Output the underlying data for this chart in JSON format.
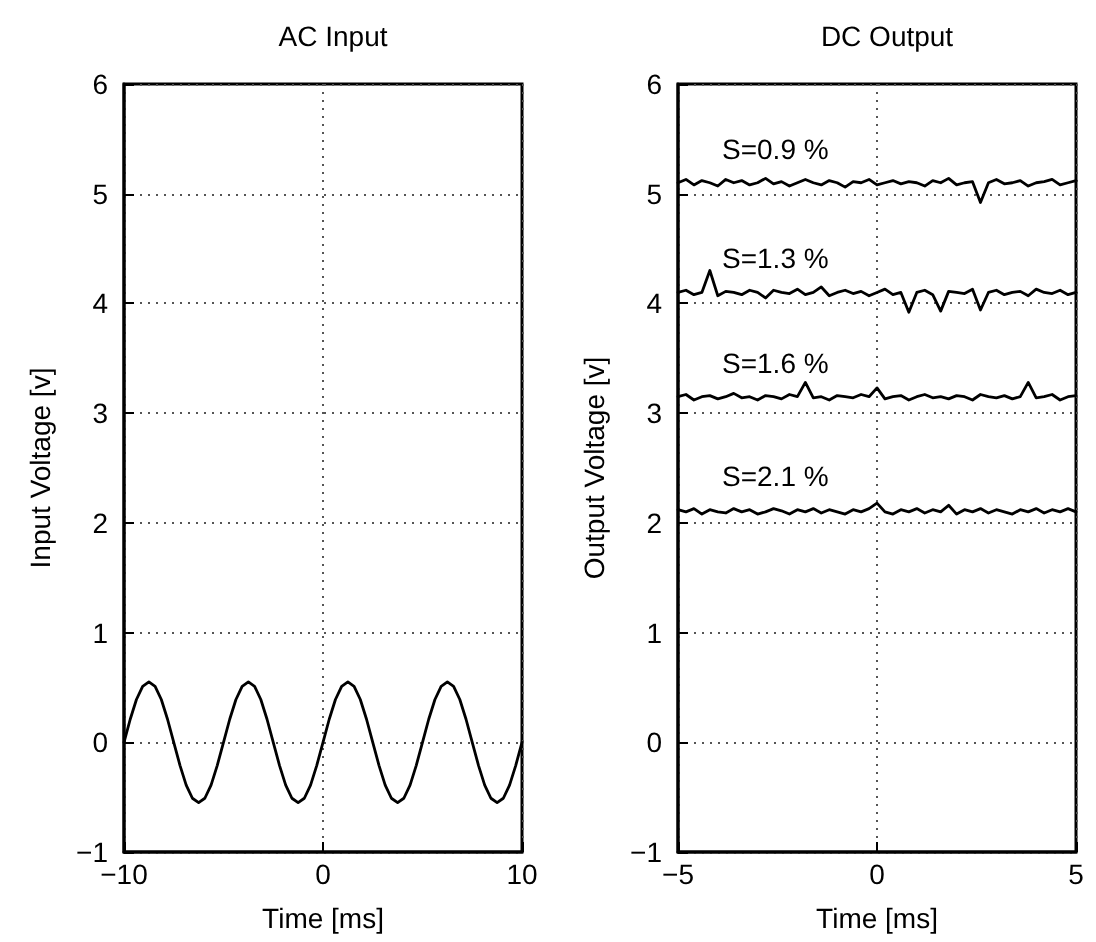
{
  "chart_data": [
    {
      "type": "line",
      "title": "AC Input",
      "xlabel": "Time [ms]",
      "ylabel": "Input Voltage [v]",
      "xlim": [
        -10,
        10
      ],
      "xticks": [
        -10,
        0,
        10
      ],
      "ylim": [
        -1,
        6
      ],
      "yticks": [
        -1,
        0,
        1,
        2,
        3,
        4,
        5,
        6
      ],
      "grid": true,
      "marker": "none",
      "line_style": "solid",
      "x": [
        -10,
        -9.6875,
        -9.375,
        -9.0625,
        -8.75,
        -8.4375,
        -8.125,
        -7.8125,
        -7.5,
        -7.1875,
        -6.875,
        -6.5625,
        -6.25,
        -5.9375,
        -5.625,
        -5.3125,
        -5,
        -4.6875,
        -4.375,
        -4.0625,
        -3.75,
        -3.4375,
        -3.125,
        -2.8125,
        -2.5,
        -2.1875,
        -1.875,
        -1.5625,
        -1.25,
        -0.9375,
        -0.625,
        -0.3125,
        0,
        0.3125,
        0.625,
        0.9375,
        1.25,
        1.5625,
        1.875,
        2.1875,
        2.5,
        2.8125,
        3.125,
        3.4375,
        3.75,
        4.0625,
        4.375,
        4.6875,
        5,
        5.3125,
        5.625,
        5.9375,
        6.25,
        6.5625,
        6.875,
        7.1875,
        7.5,
        7.8125,
        8.125,
        8.4375,
        8.75,
        9.0625,
        9.375,
        9.6875,
        10
      ],
      "series": [
        {
          "color": "#000000",
          "values": [
            0,
            0.21,
            0.39,
            0.51,
            0.55,
            0.51,
            0.39,
            0.21,
            0,
            -0.21,
            -0.39,
            -0.51,
            -0.55,
            -0.51,
            -0.39,
            -0.21,
            0,
            0.21,
            0.39,
            0.51,
            0.55,
            0.51,
            0.39,
            0.21,
            0,
            -0.21,
            -0.39,
            -0.51,
            -0.55,
            -0.51,
            -0.39,
            -0.21,
            0,
            0.21,
            0.39,
            0.51,
            0.55,
            0.51,
            0.39,
            0.21,
            0,
            -0.21,
            -0.39,
            -0.51,
            -0.55,
            -0.51,
            -0.39,
            -0.21,
            0,
            0.21,
            0.39,
            0.51,
            0.55,
            0.51,
            0.39,
            0.21,
            0,
            -0.21,
            -0.39,
            -0.51,
            -0.55,
            -0.51,
            -0.39,
            -0.21,
            0
          ]
        }
      ]
    },
    {
      "type": "line",
      "title": "DC Output",
      "xlabel": "Time [ms]",
      "ylabel": "Output Voltage [v]",
      "xlim": [
        -5,
        5
      ],
      "xticks": [
        -5,
        0,
        5
      ],
      "ylim": [
        -1,
        6
      ],
      "yticks": [
        -1,
        0,
        1,
        2,
        3,
        4,
        5,
        6
      ],
      "grid": true,
      "marker": "none",
      "line_style": "solid",
      "annotations": [
        "S=0.9 %",
        "S=1.3 %",
        "S=1.6 %",
        "S=2.1 %"
      ],
      "x": [
        -5,
        -4.8,
        -4.6,
        -4.4,
        -4.2,
        -4,
        -3.8,
        -3.6,
        -3.4,
        -3.2,
        -3,
        -2.8,
        -2.6,
        -2.4,
        -2.2,
        -2,
        -1.8,
        -1.6,
        -1.4,
        -1.2,
        -1,
        -0.8,
        -0.6,
        -0.4,
        -0.2,
        0,
        0.2,
        0.4,
        0.6,
        0.8,
        1,
        1.2,
        1.4,
        1.6,
        1.8,
        2,
        2.2,
        2.4,
        2.6,
        2.8,
        3,
        3.2,
        3.4,
        3.6,
        3.8,
        4,
        4.2,
        4.4,
        4.6,
        4.8,
        5
      ],
      "series": [
        {
          "color": "#000000",
          "values": [
            5.1,
            5.13,
            5.08,
            5.12,
            5.1,
            5.07,
            5.13,
            5.1,
            5.12,
            5.08,
            5.1,
            5.14,
            5.09,
            5.11,
            5.07,
            5.1,
            5.13,
            5.1,
            5.08,
            5.12,
            5.1,
            5.06,
            5.11,
            5.1,
            5.13,
            5.08,
            5.1,
            5.12,
            5.09,
            5.11,
            5.1,
            5.07,
            5.12,
            5.1,
            5.14,
            5.08,
            5.1,
            5.11,
            4.92,
            5.1,
            5.13,
            5.09,
            5.1,
            5.12,
            5.07,
            5.1,
            5.11,
            5.13,
            5.08,
            5.1,
            5.12
          ]
        },
        {
          "color": "#000000",
          "values": [
            4.1,
            4.12,
            4.08,
            4.1,
            4.3,
            4.07,
            4.11,
            4.1,
            4.08,
            4.12,
            4.1,
            4.05,
            4.12,
            4.1,
            4.09,
            4.13,
            4.08,
            4.1,
            4.15,
            4.07,
            4.1,
            4.12,
            4.09,
            4.11,
            4.07,
            4.1,
            4.13,
            4.08,
            4.1,
            3.92,
            4.1,
            4.12,
            4.08,
            3.93,
            4.11,
            4.1,
            4.09,
            4.13,
            3.94,
            4.1,
            4.12,
            4.08,
            4.1,
            4.11,
            4.07,
            4.13,
            4.1,
            4.09,
            4.12,
            4.08,
            4.1
          ]
        },
        {
          "color": "#000000",
          "values": [
            3.15,
            3.17,
            3.12,
            3.15,
            3.16,
            3.13,
            3.15,
            3.18,
            3.14,
            3.15,
            3.12,
            3.16,
            3.15,
            3.13,
            3.17,
            3.15,
            3.28,
            3.14,
            3.15,
            3.12,
            3.16,
            3.15,
            3.14,
            3.17,
            3.15,
            3.23,
            3.13,
            3.15,
            3.16,
            3.12,
            3.15,
            3.17,
            3.14,
            3.15,
            3.13,
            3.16,
            3.15,
            3.12,
            3.17,
            3.15,
            3.14,
            3.16,
            3.13,
            3.15,
            3.28,
            3.14,
            3.15,
            3.17,
            3.12,
            3.15,
            3.16
          ]
        },
        {
          "color": "#000000",
          "values": [
            2.12,
            2.1,
            2.13,
            2.08,
            2.12,
            2.1,
            2.09,
            2.13,
            2.1,
            2.12,
            2.08,
            2.1,
            2.13,
            2.11,
            2.08,
            2.12,
            2.1,
            2.13,
            2.09,
            2.12,
            2.1,
            2.08,
            2.12,
            2.1,
            2.13,
            2.18,
            2.1,
            2.08,
            2.12,
            2.1,
            2.13,
            2.09,
            2.12,
            2.1,
            2.16,
            2.08,
            2.12,
            2.1,
            2.13,
            2.09,
            2.12,
            2.1,
            2.08,
            2.12,
            2.1,
            2.13,
            2.09,
            2.12,
            2.1,
            2.13,
            2.1
          ]
        }
      ]
    }
  ]
}
